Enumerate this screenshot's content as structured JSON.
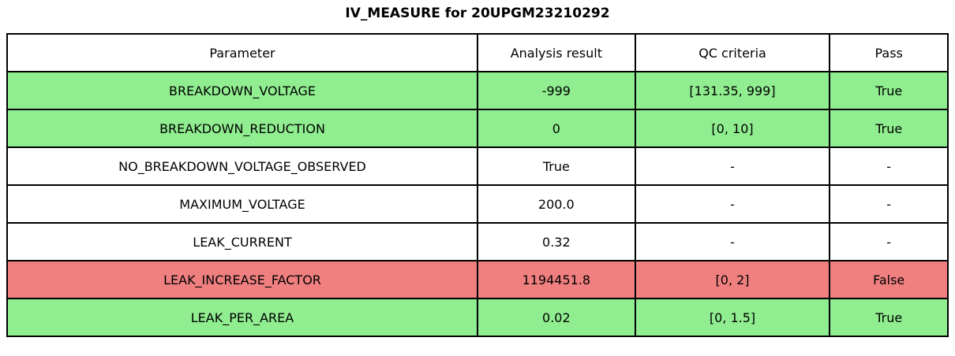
{
  "title": "IV_MEASURE for 20UPGM23210292",
  "colors": {
    "pass": "#90ee90",
    "fail": "#f08080",
    "neutral": "#ffffff",
    "border": "#000000"
  },
  "table": {
    "headers": {
      "parameter": "Parameter",
      "result": "Analysis result",
      "criteria": "QC criteria",
      "pass": "Pass"
    },
    "rows": [
      {
        "parameter": "BREAKDOWN_VOLTAGE",
        "result": "-999",
        "criteria": "[131.35, 999]",
        "pass": "True",
        "status": "pass"
      },
      {
        "parameter": "BREAKDOWN_REDUCTION",
        "result": "0",
        "criteria": "[0, 10]",
        "pass": "True",
        "status": "pass"
      },
      {
        "parameter": "NO_BREAKDOWN_VOLTAGE_OBSERVED",
        "result": "True",
        "criteria": "-",
        "pass": "-",
        "status": "neutral"
      },
      {
        "parameter": "MAXIMUM_VOLTAGE",
        "result": "200.0",
        "criteria": "-",
        "pass": "-",
        "status": "neutral"
      },
      {
        "parameter": "LEAK_CURRENT",
        "result": "0.32",
        "criteria": "-",
        "pass": "-",
        "status": "neutral"
      },
      {
        "parameter": "LEAK_INCREASE_FACTOR",
        "result": "1194451.8",
        "criteria": "[0, 2]",
        "pass": "False",
        "status": "fail"
      },
      {
        "parameter": "LEAK_PER_AREA",
        "result": "0.02",
        "criteria": "[0, 1.5]",
        "pass": "True",
        "status": "pass"
      }
    ]
  },
  "chart_data": {
    "type": "table",
    "title": "IV_MEASURE for 20UPGM23210292",
    "columns": [
      "Parameter",
      "Analysis result",
      "QC criteria",
      "Pass"
    ],
    "rows": [
      [
        "BREAKDOWN_VOLTAGE",
        "-999",
        "[131.35, 999]",
        "True"
      ],
      [
        "BREAKDOWN_REDUCTION",
        "0",
        "[0, 10]",
        "True"
      ],
      [
        "NO_BREAKDOWN_VOLTAGE_OBSERVED",
        "True",
        "-",
        "-"
      ],
      [
        "MAXIMUM_VOLTAGE",
        "200.0",
        "-",
        "-"
      ],
      [
        "LEAK_CURRENT",
        "0.32",
        "-",
        "-"
      ],
      [
        "LEAK_INCREASE_FACTOR",
        "1194451.8",
        "[0, 2]",
        "False"
      ],
      [
        "LEAK_PER_AREA",
        "0.02",
        "[0, 1.5]",
        "True"
      ]
    ],
    "row_status": [
      "pass",
      "pass",
      "neutral",
      "neutral",
      "neutral",
      "fail",
      "pass"
    ]
  }
}
